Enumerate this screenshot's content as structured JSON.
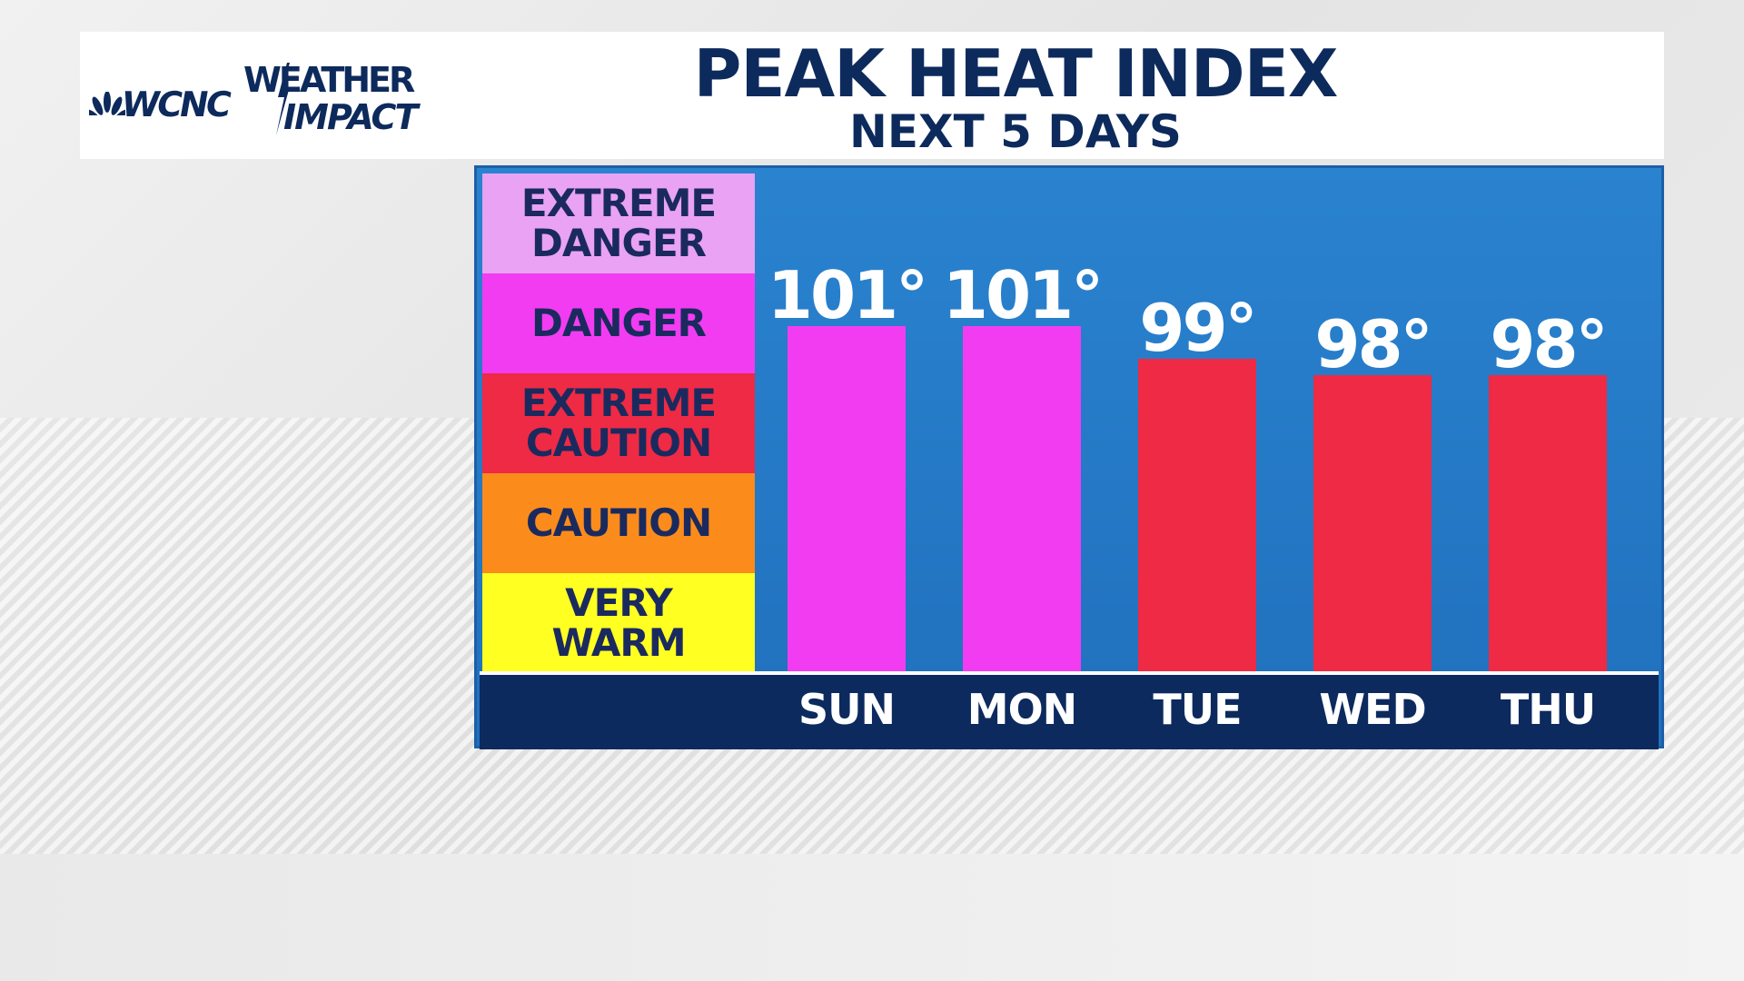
{
  "brand": {
    "station": "WCNC",
    "product_line1": "WEATHER",
    "product_line2": "IMPACT",
    "logo_icon": "nbc-peacock-icon"
  },
  "header": {
    "title": "PEAK HEAT INDEX",
    "subtitle": "NEXT 5 DAYS"
  },
  "colors": {
    "panel_blue": "#2478c6",
    "axis_navy": "#0c2a5e",
    "text_navy": "#1b2a5e",
    "extreme_danger": "#e9a2f4",
    "danger": "#f23cf2",
    "extreme_caution": "#ee2a44",
    "caution": "#fb8c1c",
    "very_warm": "#ffff22"
  },
  "chart_data": {
    "type": "bar",
    "title": "PEAK HEAT INDEX",
    "subtitle": "NEXT 5 DAYS",
    "categories": [
      "SUN",
      "MON",
      "TUE",
      "WED",
      "THU"
    ],
    "values": [
      101,
      101,
      99,
      98,
      98
    ],
    "value_labels": [
      "101°",
      "101°",
      "99°",
      "98°",
      "98°"
    ],
    "value_unit": "°F",
    "bar_colors": [
      "#f23cf2",
      "#f23cf2",
      "#ee2a44",
      "#ee2a44",
      "#ee2a44"
    ],
    "ylim": [
      80,
      112
    ],
    "grid": false,
    "legend": {
      "placement": "left",
      "categories": [
        {
          "lines": [
            "EXTREME",
            "DANGER"
          ],
          "color": "#e9a2f4"
        },
        {
          "lines": [
            "DANGER"
          ],
          "color": "#f23cf2"
        },
        {
          "lines": [
            "EXTREME",
            "CAUTION"
          ],
          "color": "#ee2a44"
        },
        {
          "lines": [
            "CAUTION"
          ],
          "color": "#fb8c1c"
        },
        {
          "lines": [
            "VERY",
            "WARM"
          ],
          "color": "#ffff22"
        }
      ]
    }
  }
}
